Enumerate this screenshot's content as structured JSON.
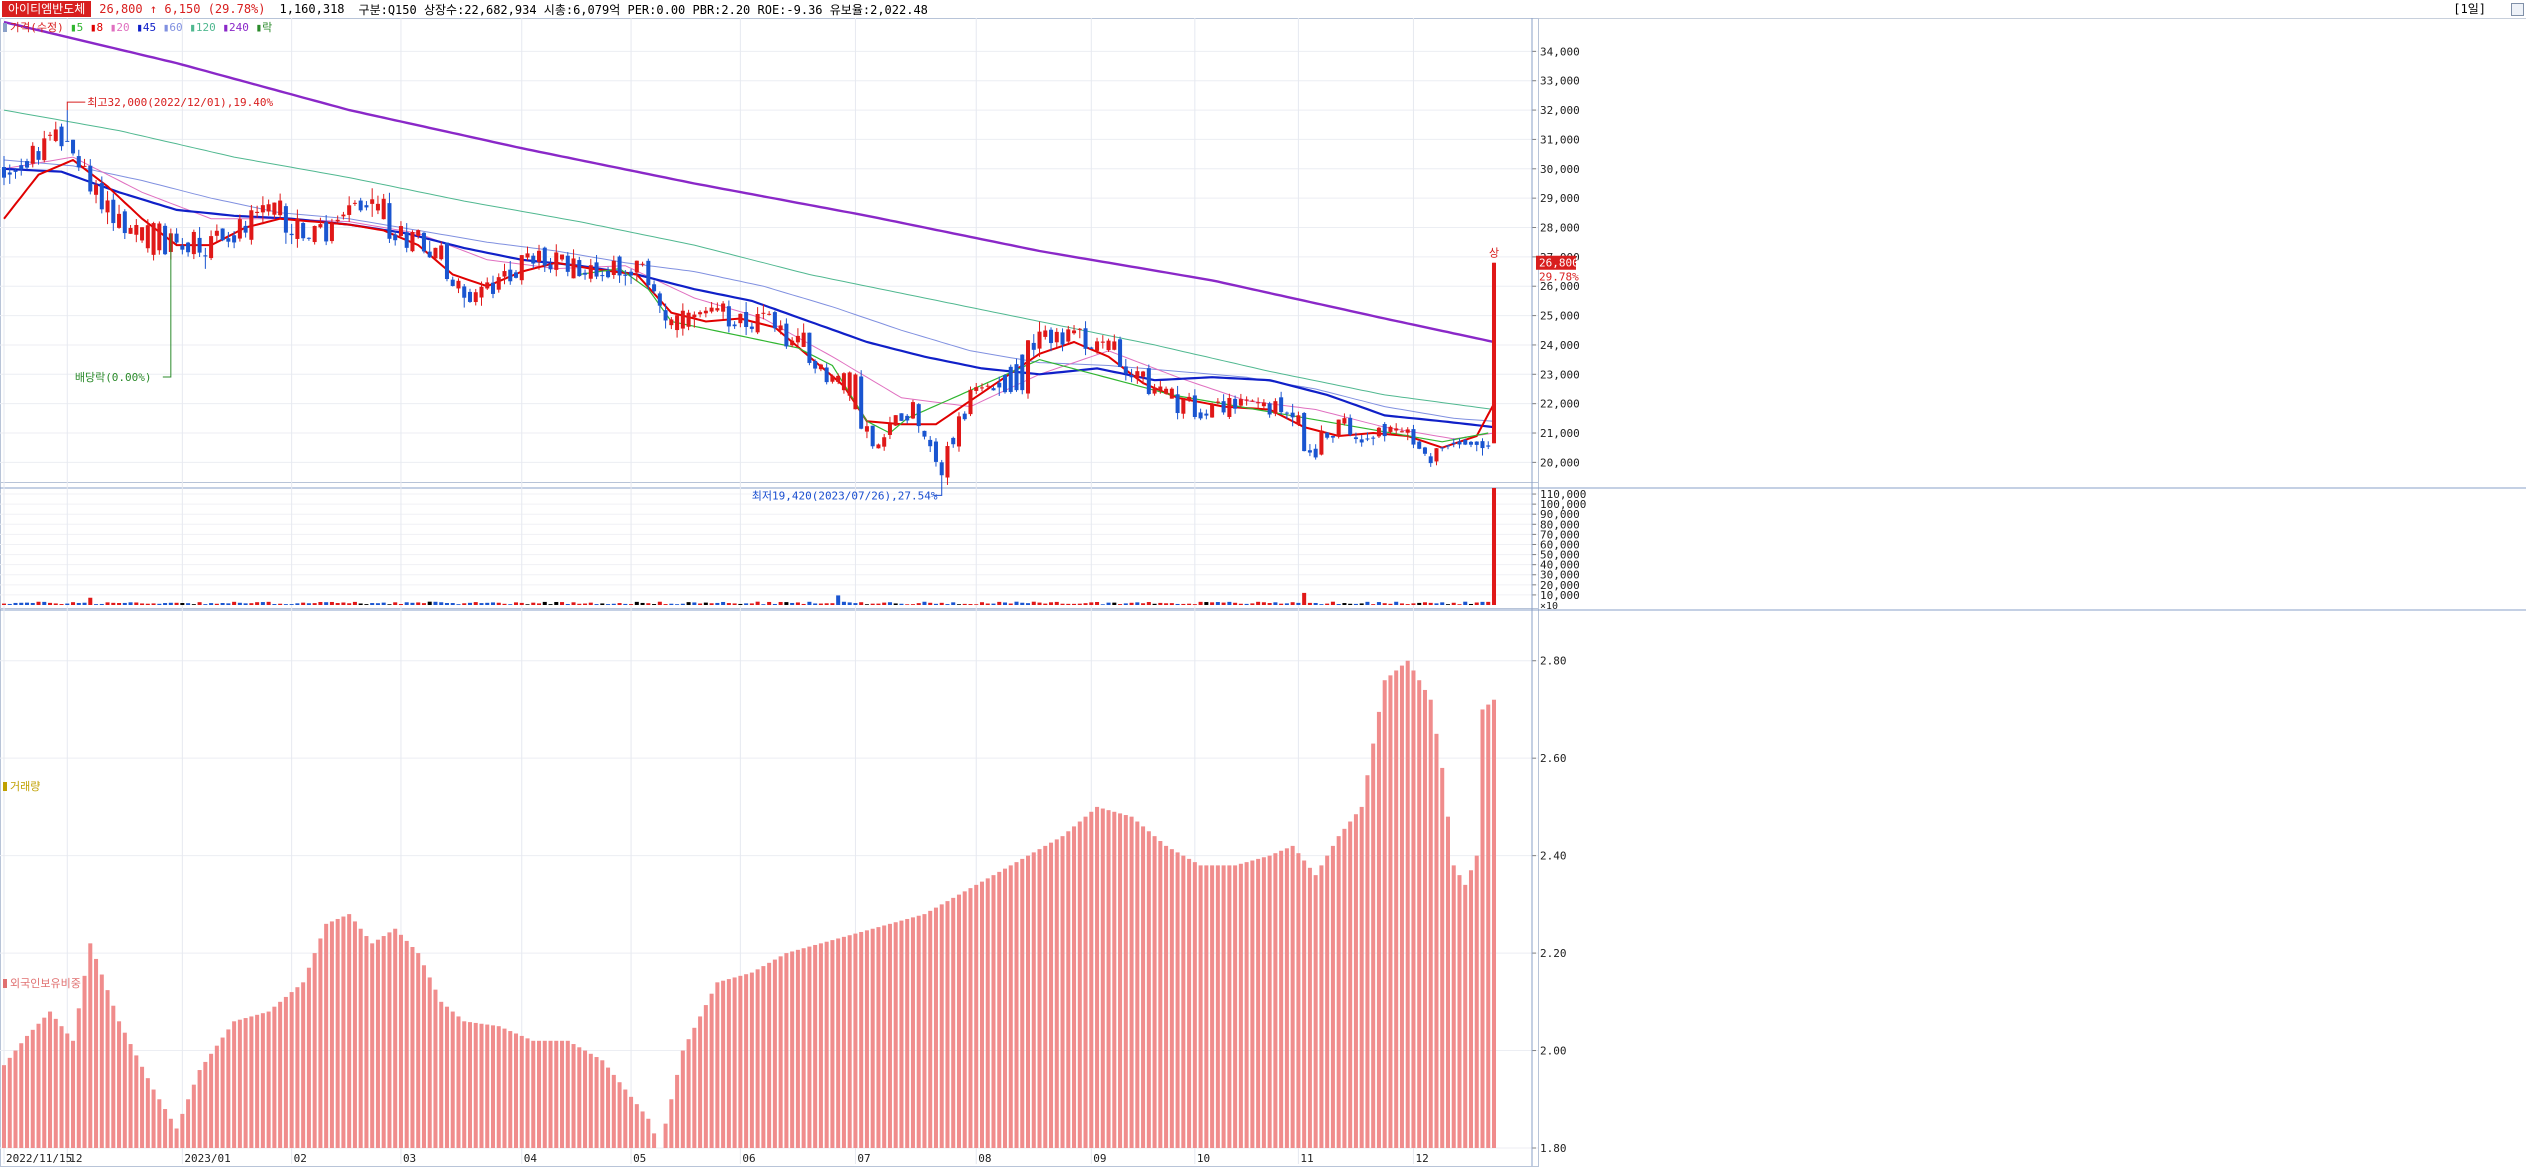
{
  "header": {
    "name": "아이티엠반도체",
    "price": "26,800",
    "change_arrow": "↑",
    "change": "6,150",
    "change_pct": "(29.78%)",
    "volume": "1,160,318",
    "stats": "구분:Q150  상장수:22,682,934  시총:6,079억  PER:0.00  PBR:2.20  ROE:-9.36  유보율:2,022.48",
    "period": "[1일]"
  },
  "legend": {
    "price_label": "가격(수정)",
    "ma": [
      {
        "label": "5",
        "color": "#2fb52f"
      },
      {
        "label": "8",
        "color": "#e00000"
      },
      {
        "label": "20",
        "color": "#e070c0"
      },
      {
        "label": "45",
        "color": "#1020c8"
      },
      {
        "label": "60",
        "color": "#8090e0"
      },
      {
        "label": "120",
        "color": "#50b890"
      },
      {
        "label": "240",
        "color": "#8a28c8"
      }
    ],
    "extra_label": "락",
    "extra_color": "#2a8a2a"
  },
  "volume_panel": {
    "title": "거래량"
  },
  "foreign_panel": {
    "title": "외국인보유비중"
  },
  "annotations": {
    "high": "최고32,000(2022/12/01),19.40%",
    "low": "최저19,420(2023/07/26),27.54%",
    "dividend": "배당락(0.00%)",
    "limit_up": "상",
    "last_price": "26,800",
    "last_pct": "29.78%"
  },
  "chart_data": {
    "type": "candlestick",
    "price_axis": {
      "ylim": [
        19400,
        35000
      ],
      "ticks": [
        {
          "value": 34000,
          "label": "34,000"
        },
        {
          "value": 33000,
          "label": "33,000"
        },
        {
          "value": 32000,
          "label": "32,000"
        },
        {
          "value": 31000,
          "label": "31,000"
        },
        {
          "value": 30000,
          "label": "30,000"
        },
        {
          "value": 29000,
          "label": "29,000"
        },
        {
          "value": 28000,
          "label": "28,000"
        },
        {
          "value": 27000,
          "label": "27,000"
        },
        {
          "value": 26000,
          "label": "26,000"
        },
        {
          "value": 25000,
          "label": "25,000"
        },
        {
          "value": 24000,
          "label": "24,000"
        },
        {
          "value": 23000,
          "label": "23,000"
        },
        {
          "value": 22000,
          "label": "22,000"
        },
        {
          "value": 21000,
          "label": "21,000"
        },
        {
          "value": 20000,
          "label": "20,000"
        }
      ]
    },
    "volume_axis": {
      "ylim": [
        0,
        116000
      ],
      "ticks": [
        {
          "value": 110000,
          "label": "110,000"
        },
        {
          "value": 100000,
          "label": "100,000"
        },
        {
          "value": 90000,
          "label": "90,000"
        },
        {
          "value": 80000,
          "label": "80,000"
        },
        {
          "value": 70000,
          "label": "70,000"
        },
        {
          "value": 60000,
          "label": "60,000"
        },
        {
          "value": 50000,
          "label": "50,000"
        },
        {
          "value": 40000,
          "label": "40,000"
        },
        {
          "value": 30000,
          "label": "30,000"
        },
        {
          "value": 20000,
          "label": "20,000"
        },
        {
          "value": 10000,
          "label": "10,000"
        }
      ],
      "unit": "×10"
    },
    "foreign_axis": {
      "ylim": [
        1.8,
        2.9
      ],
      "ticks": [
        {
          "value": 2.8,
          "label": "2.80"
        },
        {
          "value": 2.6,
          "label": "2.60"
        },
        {
          "value": 2.4,
          "label": "2.40"
        },
        {
          "value": 2.2,
          "label": "2.20"
        },
        {
          "value": 2.0,
          "label": "2.00"
        },
        {
          "value": 1.8,
          "label": "1.80"
        }
      ]
    },
    "x_labels": [
      {
        "index": 0,
        "label": "2022/11/15"
      },
      {
        "index": 11,
        "label": "12"
      },
      {
        "index": 31,
        "label": "2023/01"
      },
      {
        "index": 50,
        "label": "02"
      },
      {
        "index": 69,
        "label": "03"
      },
      {
        "index": 90,
        "label": "04"
      },
      {
        "index": 109,
        "label": "05"
      },
      {
        "index": 128,
        "label": "06"
      },
      {
        "index": 148,
        "label": "07"
      },
      {
        "index": 169,
        "label": "08"
      },
      {
        "index": 189,
        "label": "09"
      },
      {
        "index": 207,
        "label": "10"
      },
      {
        "index": 225,
        "label": "11"
      },
      {
        "index": 245,
        "label": "12"
      }
    ],
    "price_anchors": [
      [
        0,
        30000
      ],
      [
        11,
        31200
      ],
      [
        14,
        29800
      ],
      [
        18,
        28600
      ],
      [
        22,
        27800
      ],
      [
        26,
        26800
      ],
      [
        30,
        27800
      ],
      [
        35,
        27400
      ],
      [
        40,
        28000
      ],
      [
        45,
        28400
      ],
      [
        50,
        28100
      ],
      [
        55,
        27700
      ],
      [
        60,
        28400
      ],
      [
        63,
        28900
      ],
      [
        66,
        28000
      ],
      [
        70,
        27600
      ],
      [
        74,
        27300
      ],
      [
        78,
        26200
      ],
      [
        82,
        25600
      ],
      [
        86,
        26100
      ],
      [
        90,
        26900
      ],
      [
        94,
        27000
      ],
      [
        98,
        26700
      ],
      [
        102,
        26500
      ],
      [
        106,
        26700
      ],
      [
        110,
        26600
      ],
      [
        113,
        26000
      ],
      [
        117,
        24200
      ],
      [
        121,
        24800
      ],
      [
        126,
        24900
      ],
      [
        130,
        24900
      ],
      [
        134,
        24700
      ],
      [
        138,
        23800
      ],
      [
        142,
        23200
      ],
      [
        146,
        22300
      ],
      [
        149,
        21400
      ],
      [
        152,
        20300
      ],
      [
        155,
        21500
      ],
      [
        158,
        21800
      ],
      [
        161,
        20800
      ],
      [
        163,
        19700
      ],
      [
        165,
        21000
      ],
      [
        168,
        22200
      ],
      [
        171,
        22500
      ],
      [
        174,
        23200
      ],
      [
        178,
        24000
      ],
      [
        182,
        24300
      ],
      [
        186,
        24300
      ],
      [
        189,
        24100
      ],
      [
        192,
        23700
      ],
      [
        196,
        23100
      ],
      [
        199,
        22500
      ],
      [
        203,
        22000
      ],
      [
        207,
        21800
      ],
      [
        211,
        21900
      ],
      [
        215,
        22000
      ],
      [
        219,
        21800
      ],
      [
        222,
        21900
      ],
      [
        224,
        21800
      ],
      [
        226,
        20500
      ],
      [
        228,
        20700
      ],
      [
        232,
        21200
      ],
      [
        236,
        21000
      ],
      [
        240,
        21100
      ],
      [
        243,
        20800
      ],
      [
        246,
        20700
      ],
      [
        248,
        20100
      ],
      [
        250,
        20600
      ],
      [
        253,
        20900
      ],
      [
        256,
        20800
      ],
      [
        258,
        20700
      ],
      [
        259,
        26800
      ]
    ],
    "ma_anchors": {
      "5": [
        [
          100,
          26400
        ],
        [
          107,
          26600
        ],
        [
          112,
          25900
        ],
        [
          116,
          24800
        ],
        [
          138,
          23900
        ],
        [
          144,
          23300
        ],
        [
          150,
          21400
        ],
        [
          154,
          21000
        ],
        [
          157,
          21500
        ],
        [
          180,
          23500
        ],
        [
          203,
          22300
        ],
        [
          250,
          20700
        ],
        [
          258,
          21000
        ]
      ],
      "8": [
        [
          0,
          28300
        ],
        [
          6,
          29800
        ],
        [
          12,
          30300
        ],
        [
          18,
          29400
        ],
        [
          24,
          28300
        ],
        [
          30,
          27400
        ],
        [
          36,
          27400
        ],
        [
          42,
          28000
        ],
        [
          48,
          28300
        ],
        [
          54,
          28200
        ],
        [
          60,
          28100
        ],
        [
          66,
          27900
        ],
        [
          72,
          27400
        ],
        [
          78,
          26400
        ],
        [
          84,
          26000
        ],
        [
          90,
          26500
        ],
        [
          96,
          26800
        ],
        [
          102,
          26600
        ],
        [
          110,
          26400
        ],
        [
          116,
          25100
        ],
        [
          122,
          24800
        ],
        [
          128,
          24900
        ],
        [
          134,
          24600
        ],
        [
          140,
          23600
        ],
        [
          146,
          22600
        ],
        [
          150,
          21400
        ],
        [
          156,
          21300
        ],
        [
          162,
          21300
        ],
        [
          168,
          22100
        ],
        [
          174,
          22900
        ],
        [
          180,
          23700
        ],
        [
          186,
          24100
        ],
        [
          192,
          23600
        ],
        [
          198,
          22700
        ],
        [
          204,
          22200
        ],
        [
          212,
          21900
        ],
        [
          220,
          21800
        ],
        [
          226,
          21200
        ],
        [
          232,
          20900
        ],
        [
          238,
          21000
        ],
        [
          244,
          20900
        ],
        [
          250,
          20500
        ],
        [
          256,
          20900
        ],
        [
          259,
          22000
        ]
      ],
      "20": [
        [
          0,
          30000
        ],
        [
          12,
          30400
        ],
        [
          24,
          29200
        ],
        [
          36,
          28300
        ],
        [
          48,
          28300
        ],
        [
          60,
          28200
        ],
        [
          72,
          27800
        ],
        [
          84,
          26900
        ],
        [
          96,
          26600
        ],
        [
          108,
          26700
        ],
        [
          120,
          25600
        ],
        [
          132,
          24900
        ],
        [
          144,
          23600
        ],
        [
          156,
          22200
        ],
        [
          168,
          21900
        ],
        [
          180,
          23000
        ],
        [
          192,
          23800
        ],
        [
          204,
          22900
        ],
        [
          216,
          22100
        ],
        [
          228,
          21800
        ],
        [
          240,
          21200
        ],
        [
          252,
          20800
        ],
        [
          259,
          21000
        ]
      ],
      "45": [
        [
          0,
          30000
        ],
        [
          10,
          29900
        ],
        [
          20,
          29200
        ],
        [
          30,
          28600
        ],
        [
          40,
          28400
        ],
        [
          50,
          28300
        ],
        [
          60,
          28100
        ],
        [
          70,
          27800
        ],
        [
          80,
          27300
        ],
        [
          90,
          26900
        ],
        [
          100,
          26700
        ],
        [
          110,
          26400
        ],
        [
          120,
          25900
        ],
        [
          130,
          25500
        ],
        [
          140,
          24800
        ],
        [
          150,
          24100
        ],
        [
          160,
          23600
        ],
        [
          170,
          23200
        ],
        [
          180,
          23000
        ],
        [
          190,
          23200
        ],
        [
          200,
          22800
        ],
        [
          210,
          22900
        ],
        [
          220,
          22800
        ],
        [
          230,
          22300
        ],
        [
          240,
          21600
        ],
        [
          250,
          21400
        ],
        [
          259,
          21200
        ]
      ],
      "60": [
        [
          0,
          30300
        ],
        [
          12,
          30100
        ],
        [
          24,
          29600
        ],
        [
          36,
          29000
        ],
        [
          48,
          28500
        ],
        [
          60,
          28300
        ],
        [
          72,
          27900
        ],
        [
          84,
          27500
        ],
        [
          96,
          27200
        ],
        [
          108,
          26800
        ],
        [
          120,
          26500
        ],
        [
          132,
          26000
        ],
        [
          144,
          25300
        ],
        [
          156,
          24500
        ],
        [
          168,
          23800
        ],
        [
          180,
          23400
        ],
        [
          192,
          23300
        ],
        [
          204,
          23100
        ],
        [
          216,
          22900
        ],
        [
          228,
          22500
        ],
        [
          240,
          21900
        ],
        [
          252,
          21500
        ],
        [
          259,
          21400
        ]
      ],
      "120": [
        [
          0,
          32000
        ],
        [
          20,
          31300
        ],
        [
          40,
          30400
        ],
        [
          60,
          29700
        ],
        [
          80,
          28900
        ],
        [
          100,
          28200
        ],
        [
          120,
          27400
        ],
        [
          140,
          26400
        ],
        [
          160,
          25600
        ],
        [
          180,
          24800
        ],
        [
          200,
          24000
        ],
        [
          220,
          23100
        ],
        [
          240,
          22300
        ],
        [
          259,
          21800
        ]
      ],
      "240": [
        [
          0,
          35000
        ],
        [
          30,
          33600
        ],
        [
          60,
          32000
        ],
        [
          90,
          30700
        ],
        [
          120,
          29500
        ],
        [
          150,
          28400
        ],
        [
          180,
          27200
        ],
        [
          210,
          26200
        ],
        [
          240,
          24900
        ],
        [
          259,
          24100
        ]
      ]
    },
    "foreign_anchors": [
      [
        0,
        1.97
      ],
      [
        4,
        2.03
      ],
      [
        8,
        2.08
      ],
      [
        12,
        2.02
      ],
      [
        15,
        2.22
      ],
      [
        20,
        2.06
      ],
      [
        26,
        1.92
      ],
      [
        30,
        1.84
      ],
      [
        34,
        1.96
      ],
      [
        40,
        2.06
      ],
      [
        46,
        2.08
      ],
      [
        52,
        2.14
      ],
      [
        56,
        2.26
      ],
      [
        60,
        2.28
      ],
      [
        64,
        2.22
      ],
      [
        68,
        2.25
      ],
      [
        72,
        2.2
      ],
      [
        76,
        2.1
      ],
      [
        80,
        2.06
      ],
      [
        86,
        2.05
      ],
      [
        92,
        2.02
      ],
      [
        98,
        2.02
      ],
      [
        104,
        1.98
      ],
      [
        108,
        1.92
      ],
      [
        112,
        1.86
      ],
      [
        114,
        1.8
      ],
      [
        118,
        2.0
      ],
      [
        124,
        2.14
      ],
      [
        130,
        2.16
      ],
      [
        136,
        2.2
      ],
      [
        142,
        2.22
      ],
      [
        148,
        2.24
      ],
      [
        154,
        2.26
      ],
      [
        160,
        2.28
      ],
      [
        166,
        2.32
      ],
      [
        172,
        2.36
      ],
      [
        178,
        2.4
      ],
      [
        184,
        2.44
      ],
      [
        190,
        2.5
      ],
      [
        196,
        2.48
      ],
      [
        202,
        2.42
      ],
      [
        208,
        2.38
      ],
      [
        214,
        2.38
      ],
      [
        220,
        2.4
      ],
      [
        224,
        2.42
      ],
      [
        228,
        2.36
      ],
      [
        232,
        2.44
      ],
      [
        236,
        2.5
      ],
      [
        240,
        2.76
      ],
      [
        244,
        2.8
      ],
      [
        248,
        2.72
      ],
      [
        250,
        2.58
      ],
      [
        252,
        2.38
      ],
      [
        254,
        2.34
      ],
      [
        256,
        2.4
      ],
      [
        257,
        2.7
      ],
      [
        259,
        2.72
      ]
    ],
    "last_bar": {
      "index": 259,
      "open": 20650,
      "close": 26800,
      "high": 26800,
      "low": 20650,
      "volume": 116031
    },
    "high_point": {
      "index": 11,
      "value": 32000
    },
    "low_point": {
      "index": 163,
      "value": 19420
    },
    "dividend_point": {
      "index": 29,
      "value": 27800
    },
    "n_bars": 260
  }
}
